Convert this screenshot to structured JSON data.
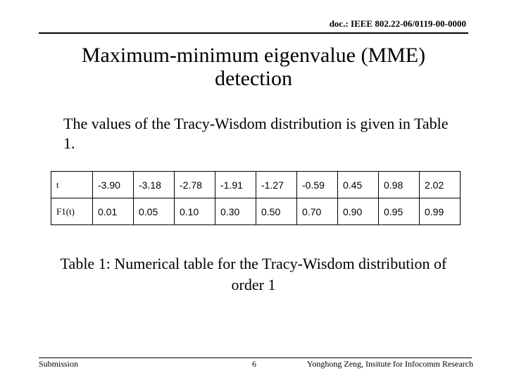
{
  "header": {
    "doc": "doc.: IEEE 802.22-06/0119-00-0000"
  },
  "title": "Maximum-minimum eigenvalue (MME) detection",
  "body": "The values of the Tracy-Wisdom distribution is given in Table 1.",
  "table": {
    "rows": [
      [
        "t",
        "-3.90",
        "-3.18",
        "-2.78",
        "-1.91",
        "-1.27",
        "-0.59",
        "0.45",
        "0.98",
        "2.02"
      ],
      [
        "F1(t)",
        "0.01",
        "0.05",
        "0.10",
        "0.30",
        "0.50",
        "0.70",
        "0.90",
        "0.95",
        "0.99"
      ]
    ]
  },
  "caption": "Table 1: Numerical table for the Tracy-Wisdom distribution of order 1",
  "footer": {
    "left": "Submission",
    "page": "6",
    "author": "Yonghong Zeng, Insitute for Infocomm Research"
  }
}
